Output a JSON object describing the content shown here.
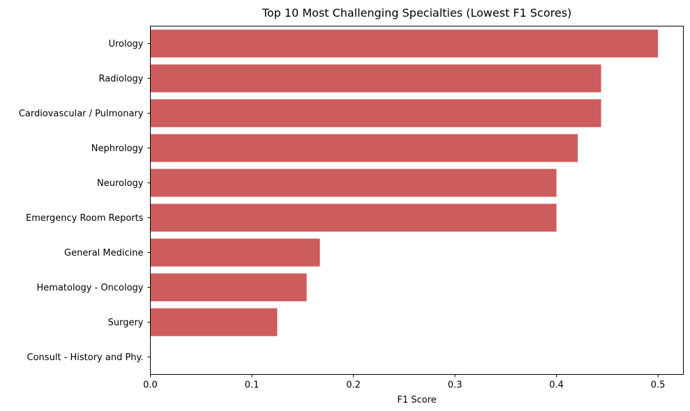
{
  "chart_data": {
    "type": "bar",
    "orientation": "horizontal",
    "title": "Top 10 Most Challenging Specialties (Lowest F1 Scores)",
    "xlabel": "F1 Score",
    "ylabel": "",
    "categories": [
      "Urology",
      "Radiology",
      "Cardiovascular / Pulmonary",
      "Nephrology",
      "Neurology",
      "Emergency Room Reports",
      "General Medicine",
      "Hematology - Oncology",
      "Surgery",
      "Consult - History and Phy."
    ],
    "values": [
      0.5,
      0.444,
      0.444,
      0.421,
      0.4,
      0.4,
      0.167,
      0.154,
      0.125,
      0.0
    ],
    "xlim": [
      0,
      0.525
    ],
    "x_ticks": [
      0.0,
      0.1,
      0.2,
      0.3,
      0.4,
      0.5
    ],
    "x_tick_labels": [
      "0.0",
      "0.1",
      "0.2",
      "0.3",
      "0.4",
      "0.5"
    ],
    "bar_color": "#cd5c5c",
    "grid": false,
    "legend": "none"
  }
}
